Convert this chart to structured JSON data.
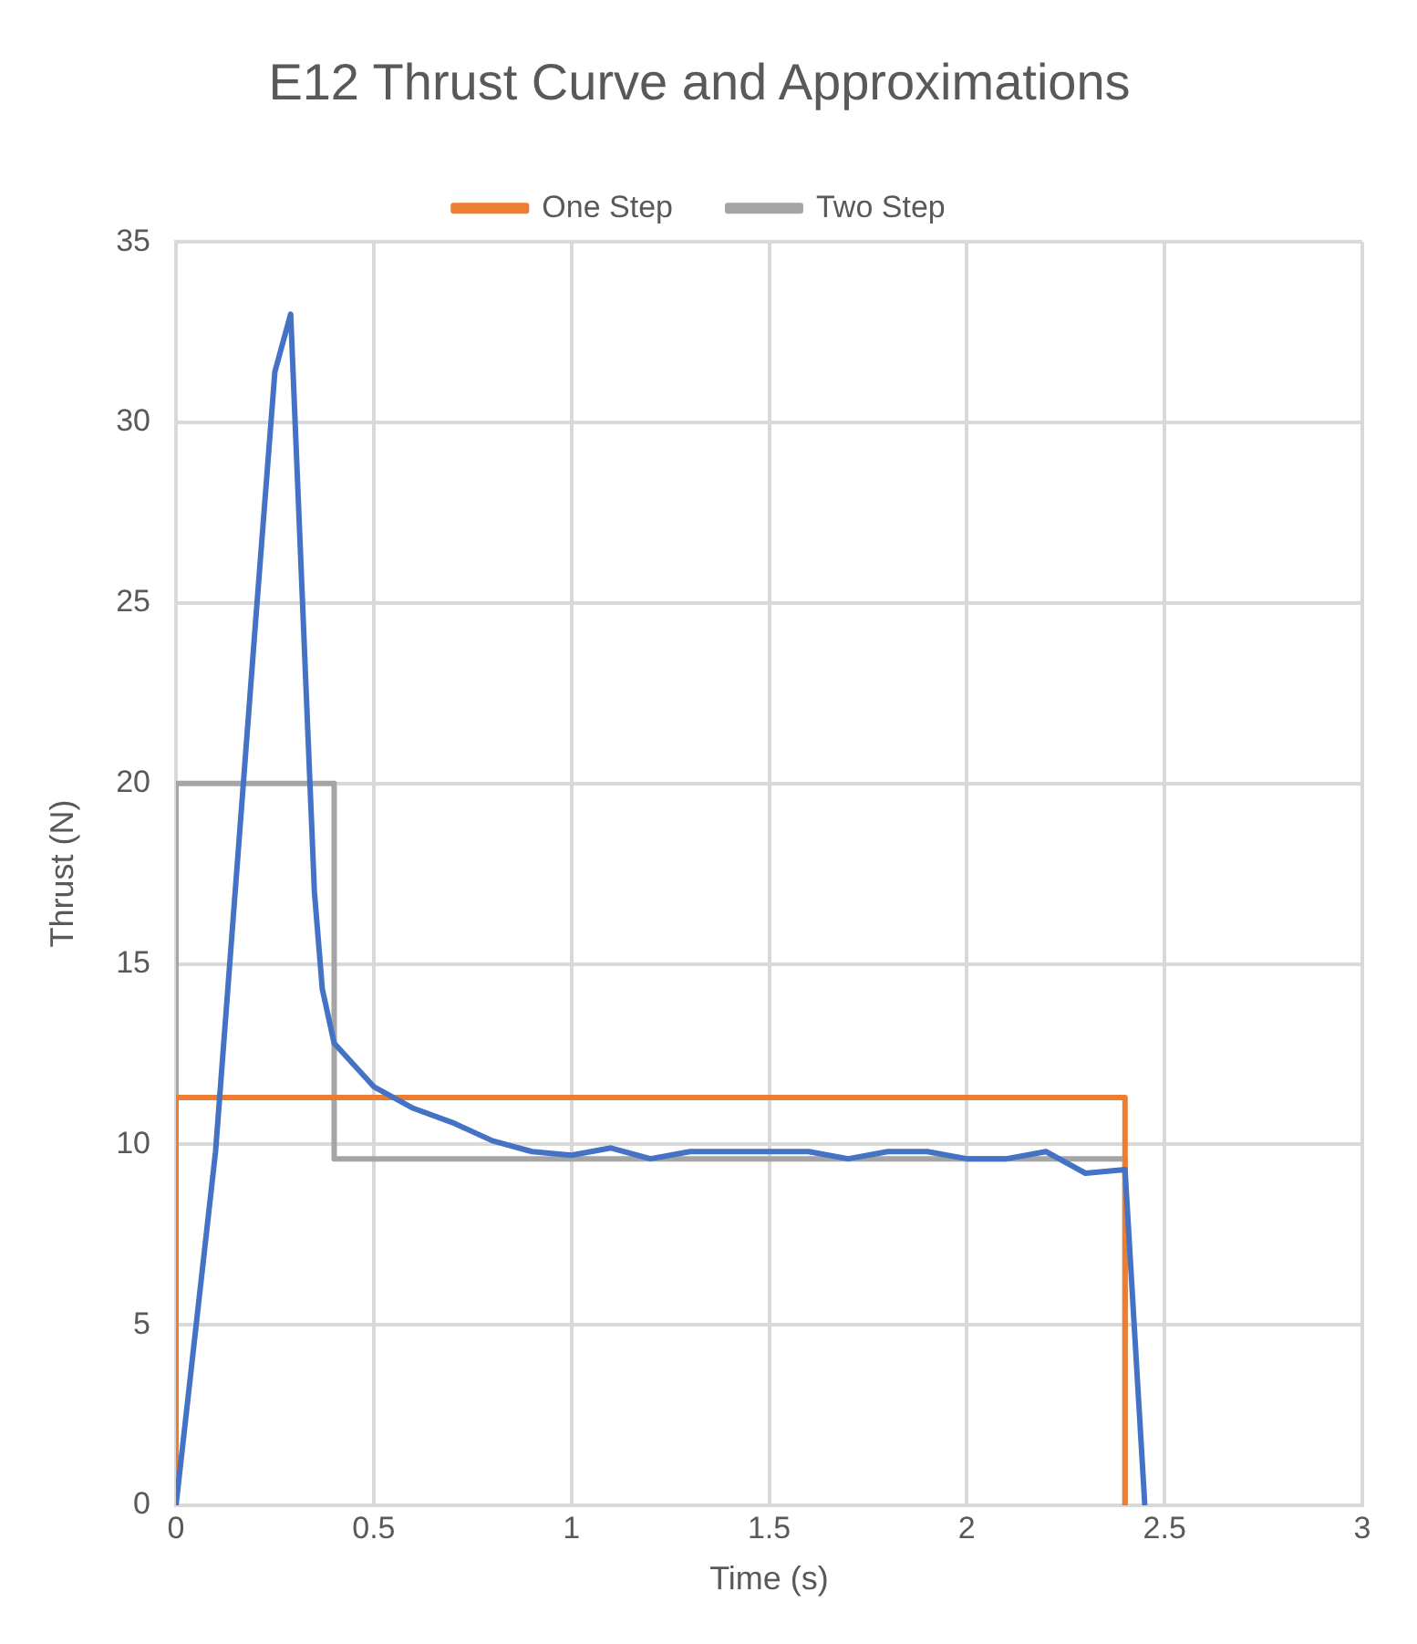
{
  "chart_data": {
    "type": "line",
    "title": "E12 Thrust Curve and Approximations",
    "xlabel": "Time (s)",
    "ylabel": "Thrust (N)",
    "xlim": [
      0,
      3
    ],
    "xticks": [
      0,
      0.5,
      1,
      1.5,
      2,
      2.5,
      3
    ],
    "ylim": [
      0,
      35
    ],
    "yticks": [
      0,
      5,
      10,
      15,
      20,
      25,
      30,
      35
    ],
    "grid": true,
    "legend": "top",
    "marker": "none",
    "line_style": "solid",
    "series": [
      {
        "color": "#4472c4",
        "x": [
          0,
          0.1,
          0.2,
          0.25,
          0.29,
          0.35,
          0.37,
          0.4,
          0.5,
          0.6,
          0.7,
          0.8,
          0.9,
          1.0,
          1.1,
          1.2,
          1.3,
          1.4,
          1.5,
          1.6,
          1.7,
          1.8,
          1.9,
          2.0,
          2.1,
          2.2,
          2.3,
          2.4,
          2.45
        ],
        "values": [
          0,
          9.8,
          24.3,
          31.4,
          33,
          17,
          14.3,
          12.8,
          11.6,
          11.0,
          10.6,
          10.1,
          9.8,
          9.7,
          9.9,
          9.6,
          9.8,
          9.8,
          9.8,
          9.8,
          9.6,
          9.8,
          9.8,
          9.6,
          9.6,
          9.8,
          9.2,
          9.3,
          0
        ]
      },
      {
        "name": "One Step",
        "color": "#ed7d31",
        "x": [
          0,
          0,
          2.4,
          2.4
        ],
        "values": [
          0,
          11.3,
          11.3,
          0
        ]
      },
      {
        "name": "Two Step",
        "color": "#a5a5a5",
        "x": [
          0,
          0,
          0.4,
          0.4,
          2.4,
          2.4
        ],
        "values": [
          0,
          20,
          20,
          9.6,
          9.6,
          0
        ]
      }
    ]
  }
}
